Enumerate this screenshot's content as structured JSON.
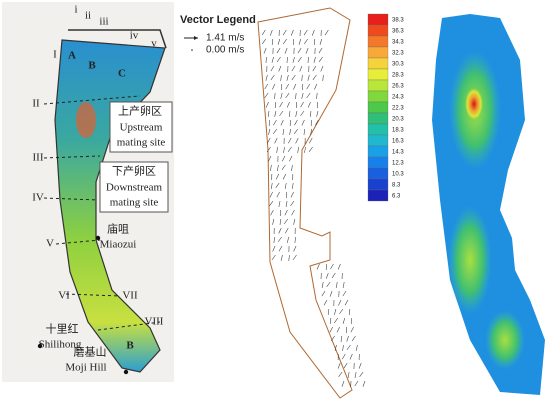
{
  "left_map": {
    "cross_sections_top": [
      "i",
      "ii",
      "iii",
      "iv",
      "v"
    ],
    "cross_sections": [
      "I",
      "II",
      "III",
      "IV",
      "V",
      "VI",
      "VII",
      "VIII"
    ],
    "zones": [
      "A",
      "B",
      "C",
      "B"
    ],
    "upstream_site": {
      "zh": "上产卵区",
      "en": [
        "Upstream",
        "mating site"
      ]
    },
    "downstream_site": {
      "zh": "下产卵区",
      "en": [
        "Downstream",
        "mating site"
      ]
    },
    "places": [
      {
        "zh": "庙咀",
        "en": "Miaozui"
      },
      {
        "zh": "十里红",
        "en": "Shilihong"
      },
      {
        "zh": "磨基山",
        "en": "Moji Hill"
      }
    ]
  },
  "vector_legend": {
    "title": "Vector Legend",
    "entries": [
      "1.41 m/s",
      "0.00 m/s"
    ]
  },
  "color_legend": [
    {
      "label": "38.3",
      "color": "#e8201c"
    },
    {
      "label": "36.3",
      "color": "#ef4a1e"
    },
    {
      "label": "34.3",
      "color": "#f5782a"
    },
    {
      "label": "32.3",
      "color": "#f9a83a"
    },
    {
      "label": "30.3",
      "color": "#f6d23c"
    },
    {
      "label": "28.3",
      "color": "#e6ee3a"
    },
    {
      "label": "26.3",
      "color": "#b8e63a"
    },
    {
      "label": "24.3",
      "color": "#80d83c"
    },
    {
      "label": "22.3",
      "color": "#4cc84a"
    },
    {
      "label": "20.3",
      "color": "#2fbf7a"
    },
    {
      "label": "18.3",
      "color": "#22c0a8"
    },
    {
      "label": "16.3",
      "color": "#1fb8d0"
    },
    {
      "label": "14.3",
      "color": "#1aa0e6"
    },
    {
      "label": "12.3",
      "color": "#1880ea"
    },
    {
      "label": "10.3",
      "color": "#1860e0"
    },
    {
      "label": "8.3",
      "color": "#1a40d0"
    },
    {
      "label": "6.3",
      "color": "#1c22b8"
    }
  ]
}
